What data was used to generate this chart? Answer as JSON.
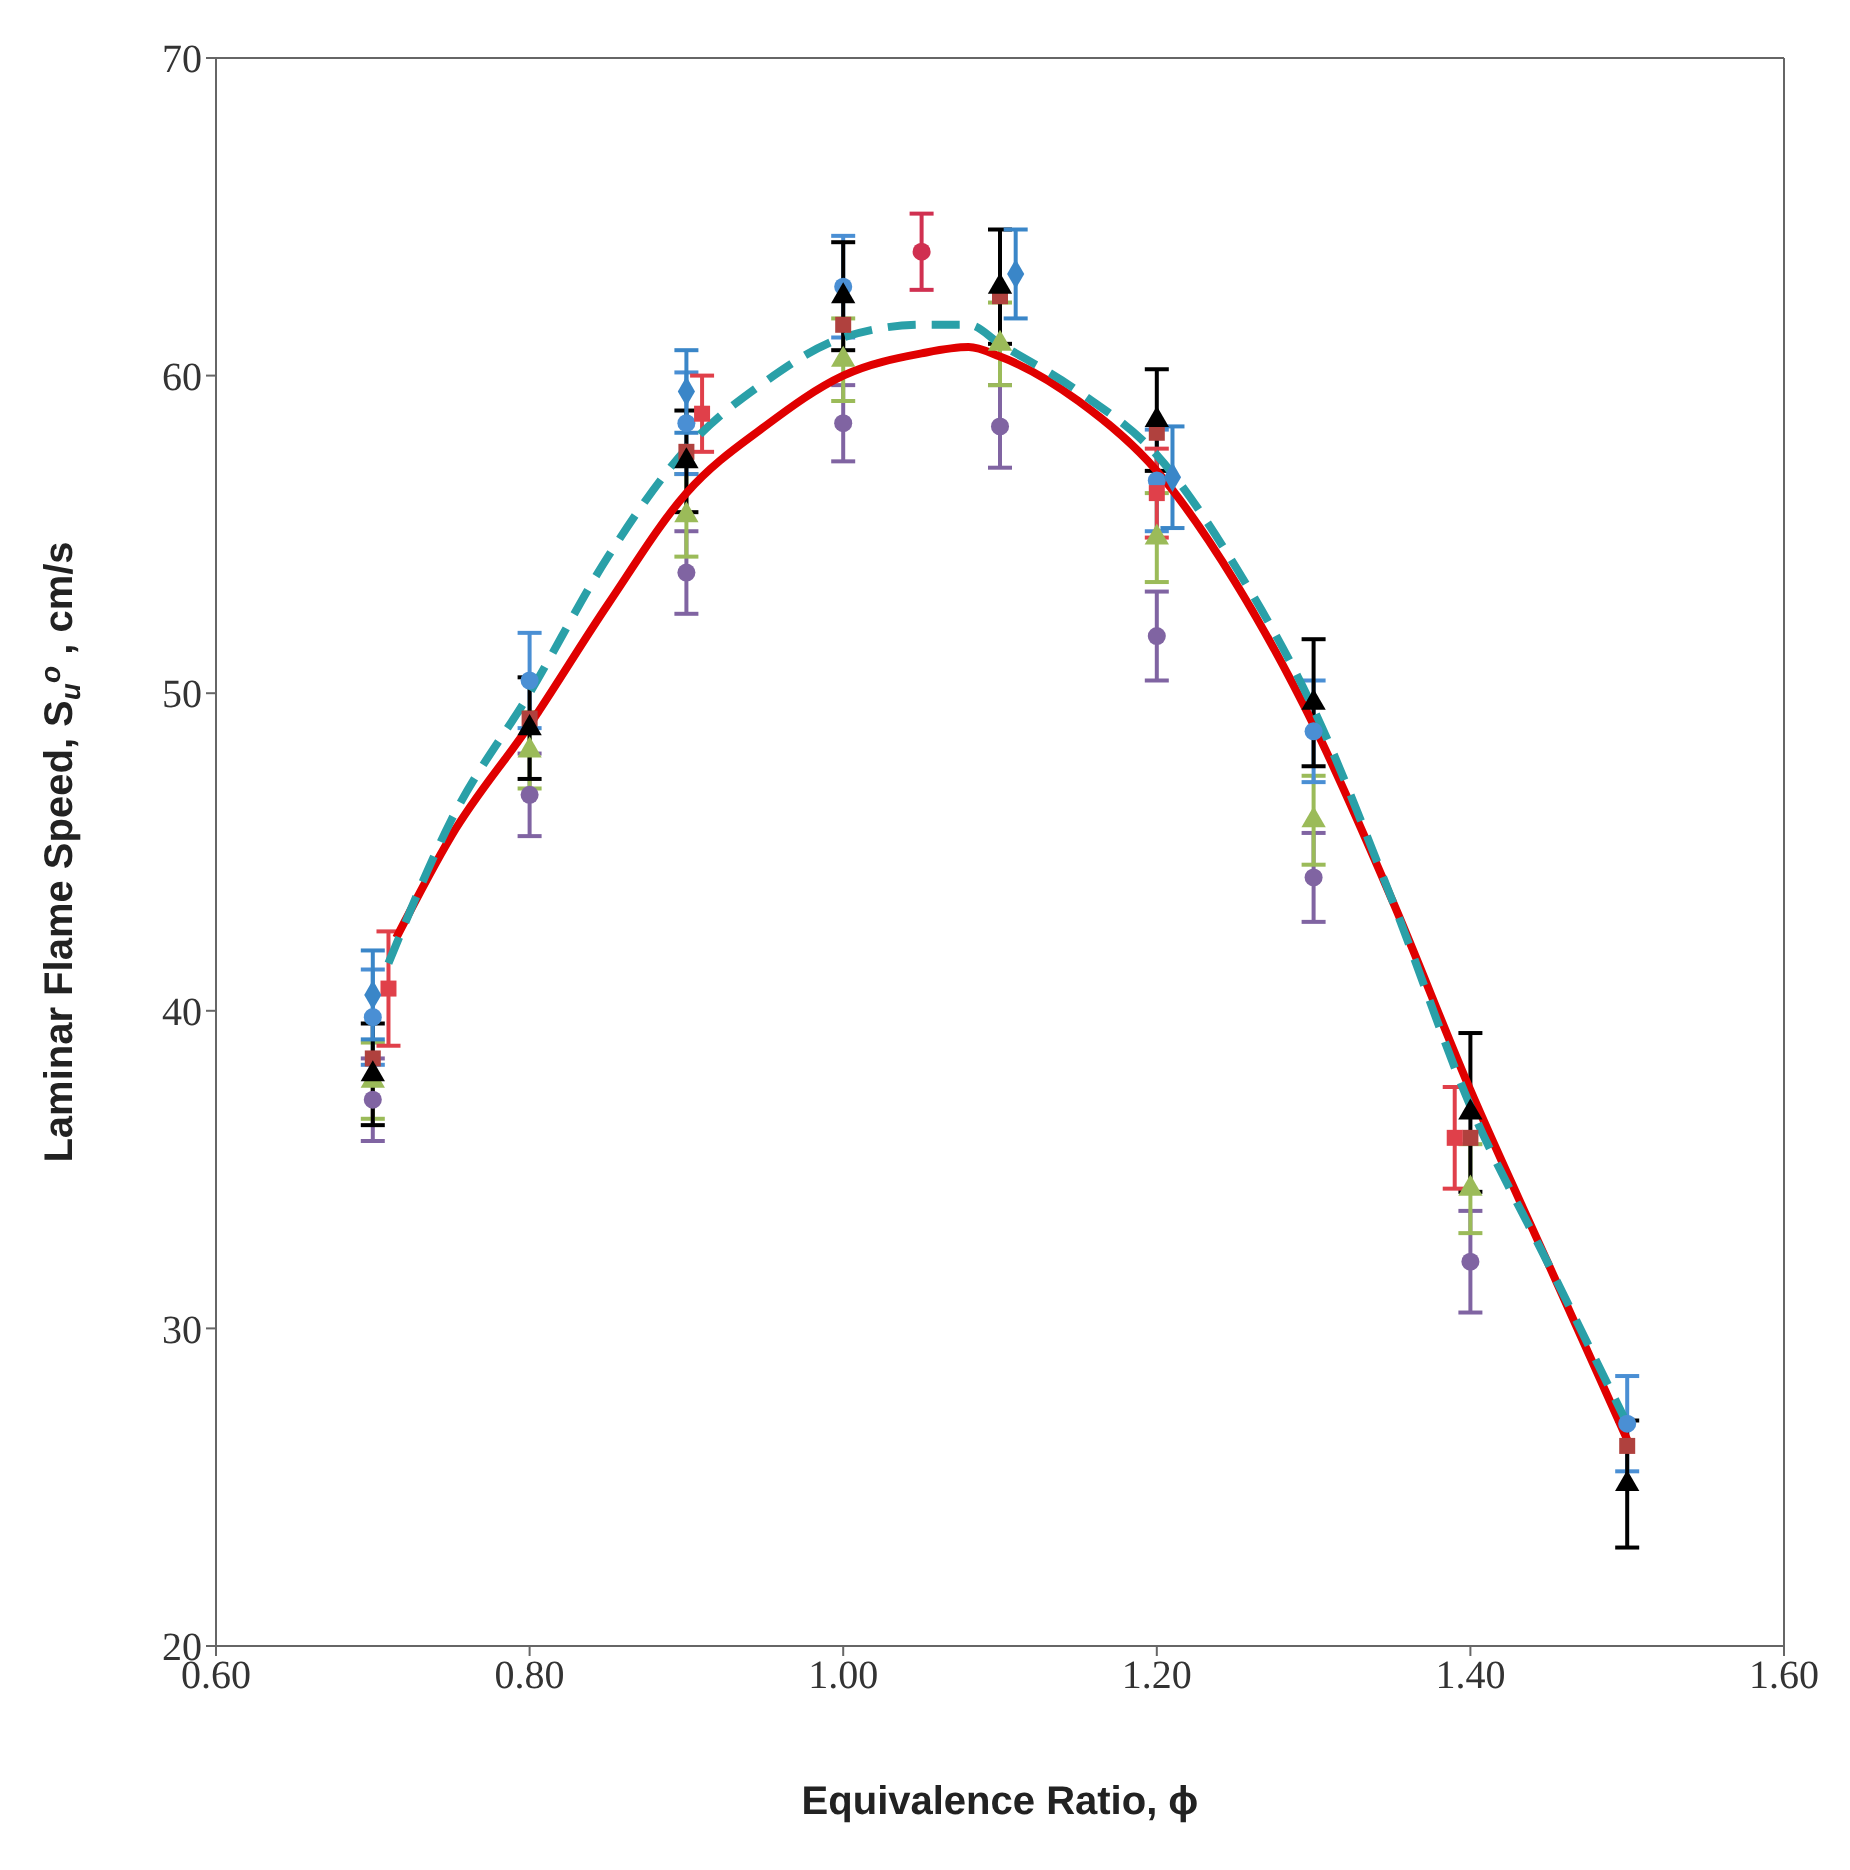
{
  "chart_data": {
    "type": "scatter",
    "xlabel": "Equivalence Ratio, ϕ",
    "ylabel": "Laminar Flame Speed, S$_{u}$$^{o}$ , cm/s",
    "xlim": [
      0.6,
      1.6
    ],
    "xticks": [
      {
        "value": 0.6,
        "label": "0.60"
      },
      {
        "value": 0.8,
        "label": "0.80"
      },
      {
        "value": 1.0,
        "label": "1.00"
      },
      {
        "value": 1.2,
        "label": "1.20"
      },
      {
        "value": 1.4,
        "label": "1.40"
      },
      {
        "value": 1.6,
        "label": "1.60"
      }
    ],
    "ylim": [
      20,
      70
    ],
    "yticks": [
      20,
      30,
      40,
      50,
      60,
      70
    ],
    "grid": false,
    "legend": false,
    "series": [
      {
        "marker": "circle",
        "color": "#8064a2",
        "x": [
          0.7,
          0.8,
          0.9,
          1.0,
          1.1,
          1.2,
          1.3,
          1.4
        ],
        "values": [
          37.2,
          46.8,
          53.8,
          58.5,
          58.4,
          51.8,
          44.2,
          32.1
        ],
        "errors": [
          1.3,
          1.3,
          1.3,
          1.2,
          1.3,
          1.4,
          1.4,
          1.6
        ]
      },
      {
        "marker": "triangle",
        "color": "#9bbb59",
        "x": [
          0.7,
          0.8,
          0.9,
          1.0,
          1.1,
          1.2,
          1.3,
          1.4
        ],
        "values": [
          37.8,
          48.2,
          55.6,
          60.5,
          61.0,
          54.9,
          46.0,
          34.4
        ],
        "errors": [
          1.2,
          1.2,
          1.3,
          1.3,
          1.3,
          1.4,
          1.4,
          1.4
        ]
      },
      {
        "marker": "circle",
        "color": "#4a8fd4",
        "x": [
          0.7,
          0.8,
          0.9,
          1.0,
          1.1,
          1.2,
          1.3,
          1.4,
          1.5
        ],
        "values": [
          39.8,
          50.4,
          58.5,
          62.8,
          null,
          56.7,
          48.8,
          null,
          27.0
        ],
        "errors": [
          1.5,
          1.5,
          1.6,
          1.6,
          null,
          1.6,
          1.6,
          null,
          1.5
        ]
      },
      {
        "marker": "square",
        "color": "#b0413e",
        "x": [
          0.7,
          0.8,
          0.9,
          1.0,
          1.1,
          1.2,
          1.3,
          1.4,
          1.5
        ],
        "values": [
          38.5,
          49.2,
          57.6,
          61.6,
          62.5,
          58.2,
          null,
          36.0,
          26.3
        ]
      },
      {
        "marker": "triangle",
        "color": "#000000",
        "x": [
          0.7,
          0.8,
          0.9,
          1.0,
          1.1,
          1.2,
          1.3,
          1.4,
          1.5
        ],
        "values": [
          38.0,
          48.9,
          57.3,
          62.5,
          62.8,
          58.6,
          49.7,
          36.8,
          25.1
        ],
        "errors": [
          1.6,
          1.6,
          1.6,
          1.7,
          1.8,
          1.6,
          2.0,
          2.5,
          2.0
        ]
      },
      {
        "marker": "square",
        "color": "#e0404a",
        "x": [
          0.71,
          0.91,
          1.2,
          1.39
        ],
        "values": [
          40.7,
          58.8,
          56.3,
          36.0
        ],
        "errors": [
          1.8,
          1.2,
          1.4,
          1.6
        ]
      },
      {
        "marker": "circle",
        "color": "#d03050",
        "x": [
          1.05
        ],
        "values": [
          63.9
        ],
        "errors": [
          1.2
        ]
      },
      {
        "marker": "diamond",
        "color": "#3a86c8",
        "x": [
          0.7,
          0.9,
          1.11,
          1.21
        ],
        "values": [
          40.5,
          59.5,
          63.2,
          56.8
        ],
        "errors": [
          1.4,
          1.3,
          1.4,
          1.6
        ]
      },
      {
        "type": "line",
        "marker": "none",
        "line_style": "solid",
        "color": "#e00000",
        "x": [
          0.715,
          0.75,
          0.8,
          0.85,
          0.9,
          0.95,
          1.0,
          1.05,
          1.08,
          1.1,
          1.15,
          1.2,
          1.25,
          1.3,
          1.35,
          1.4,
          1.45,
          1.5
        ],
        "values": [
          42.3,
          45.5,
          49.0,
          52.8,
          56.3,
          58.4,
          60.0,
          60.7,
          60.9,
          60.6,
          59.2,
          57.0,
          53.5,
          49.0,
          43.5,
          37.5,
          32.0,
          26.5
        ]
      },
      {
        "type": "line",
        "marker": "none",
        "line_style": "dashed",
        "color": "#2aa0a8",
        "x": [
          0.71,
          0.75,
          0.8,
          0.85,
          0.9,
          0.95,
          1.0,
          1.05,
          1.08,
          1.1,
          1.15,
          1.2,
          1.25,
          1.3,
          1.35,
          1.4,
          1.45,
          1.5
        ],
        "values": [
          41.5,
          46.0,
          50.0,
          54.3,
          57.7,
          59.8,
          61.2,
          61.6,
          61.6,
          61.0,
          59.5,
          57.5,
          54.0,
          49.5,
          43.5,
          37.0,
          32.0,
          27.0
        ]
      }
    ]
  }
}
